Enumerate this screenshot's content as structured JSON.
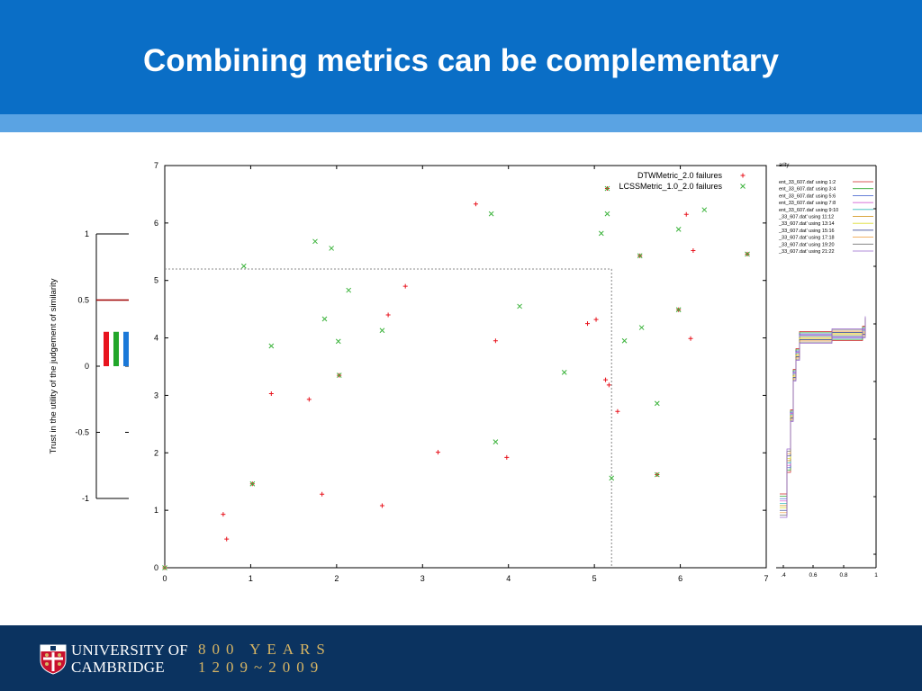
{
  "slide": {
    "title": "Combining metrics can be complementary",
    "colors": {
      "header": "#0a6ec6",
      "stripe": "#5aa3e3",
      "footer": "#0b3360",
      "gold": "#d7b564"
    }
  },
  "footer": {
    "university_line1": "UNIVERSITY OF",
    "university_line2": "CAMBRIDGE",
    "years_line1": "800 YEARS",
    "years_line2": "1209~2009"
  },
  "chart_data": [
    {
      "type": "bar",
      "ylabel": "Trust in the utility of the judgement of similarity",
      "ylim": [
        -1,
        1
      ],
      "yticks": [
        "1",
        "0.5",
        "0",
        "-0.5",
        "-1"
      ],
      "reference_line": 0.5,
      "series": [
        {
          "color": "#e8141e",
          "bottom": 0,
          "top": 0.26
        },
        {
          "color": "#22a62a",
          "bottom": 0,
          "top": 0.26
        },
        {
          "color": "#1a78d8",
          "bottom": 0,
          "top": 0.26
        }
      ]
    },
    {
      "type": "scatter",
      "xlim": [
        0,
        7
      ],
      "ylim": [
        0,
        7
      ],
      "xticks": [
        "0",
        "1",
        "2",
        "3",
        "4",
        "5",
        "6",
        "7"
      ],
      "yticks": [
        "0",
        "1",
        "2",
        "3",
        "4",
        "5",
        "6",
        "7"
      ],
      "threshold": {
        "x": 5.2,
        "y": 5.2
      },
      "legend_position": "top-right",
      "series": [
        {
          "name": "DTWMetric_2.0 failures",
          "marker": "+",
          "color": "#e8141e",
          "points": [
            [
              0.0,
              0.0
            ],
            [
              0.68,
              0.93
            ],
            [
              0.72,
              0.5
            ],
            [
              1.02,
              1.46
            ],
            [
              1.24,
              3.03
            ],
            [
              1.68,
              2.93
            ],
            [
              1.83,
              1.28
            ],
            [
              2.03,
              3.35
            ],
            [
              2.53,
              1.08
            ],
            [
              2.6,
              4.4
            ],
            [
              2.8,
              4.9
            ],
            [
              3.18,
              2.01
            ],
            [
              3.62,
              6.33
            ],
            [
              3.85,
              3.95
            ],
            [
              3.98,
              1.92
            ],
            [
              4.92,
              4.25
            ],
            [
              5.02,
              4.32
            ],
            [
              5.13,
              3.27
            ],
            [
              5.17,
              3.18
            ],
            [
              5.27,
              2.72
            ],
            [
              5.53,
              5.43
            ],
            [
              5.73,
              1.62
            ],
            [
              5.98,
              4.49
            ],
            [
              6.07,
              6.15
            ],
            [
              6.12,
              3.99
            ],
            [
              6.15,
              5.52
            ],
            [
              6.78,
              5.46
            ],
            [
              5.15,
              6.6
            ]
          ]
        },
        {
          "name": "LCSSMetric_1.0_2.0 failures",
          "marker": "x",
          "color": "#3bb33b",
          "points": [
            [
              0.0,
              0.0
            ],
            [
              0.92,
              5.25
            ],
            [
              1.24,
              3.86
            ],
            [
              1.75,
              5.68
            ],
            [
              1.86,
              4.33
            ],
            [
              1.94,
              5.56
            ],
            [
              2.02,
              3.94
            ],
            [
              2.14,
              4.83
            ],
            [
              2.53,
              4.13
            ],
            [
              3.8,
              6.16
            ],
            [
              3.85,
              2.19
            ],
            [
              4.13,
              4.55
            ],
            [
              4.65,
              3.4
            ],
            [
              5.08,
              5.82
            ],
            [
              5.15,
              6.16
            ],
            [
              5.2,
              1.56
            ],
            [
              5.35,
              3.95
            ],
            [
              5.55,
              4.18
            ],
            [
              5.73,
              1.62
            ],
            [
              5.73,
              2.86
            ],
            [
              5.98,
              5.89
            ],
            [
              6.28,
              6.23
            ],
            [
              6.78,
              5.46
            ],
            [
              5.53,
              5.43
            ],
            [
              5.98,
              4.49
            ],
            [
              5.15,
              6.6
            ],
            [
              2.03,
              3.35
            ],
            [
              1.02,
              1.46
            ]
          ]
        }
      ]
    },
    {
      "type": "line",
      "title": "arity",
      "xticks": [
        ".4",
        "0.6",
        "0.8",
        "1"
      ],
      "legend_position": "top",
      "series": [
        {
          "name": "ent_33_607.dat' using 1:2",
          "color": "#cc2222"
        },
        {
          "name": "ent_33_607.dat' using 3:4",
          "color": "#33aa33"
        },
        {
          "name": "ent_33_607.dat' using 5:6",
          "color": "#3355cc"
        },
        {
          "name": "ent_33_607.dat' using 7:8",
          "color": "#cc44cc"
        },
        {
          "name": "ent_33_607.dat' using 9:10",
          "color": "#33bbbb"
        },
        {
          "name": "_33_607.dat' using 11:12",
          "color": "#cc8800"
        },
        {
          "name": "_33_607.dat' using 13:14",
          "color": "#dddd33"
        },
        {
          "name": "_33_607.dat' using 15:16",
          "color": "#223388"
        },
        {
          "name": "_33_607.dat' using 17:18",
          "color": "#ee9933"
        },
        {
          "name": "_33_607.dat' using 19:20",
          "color": "#777777"
        },
        {
          "name": "_33_607.dat' using 21:22",
          "color": "#9966cc"
        }
      ]
    }
  ]
}
